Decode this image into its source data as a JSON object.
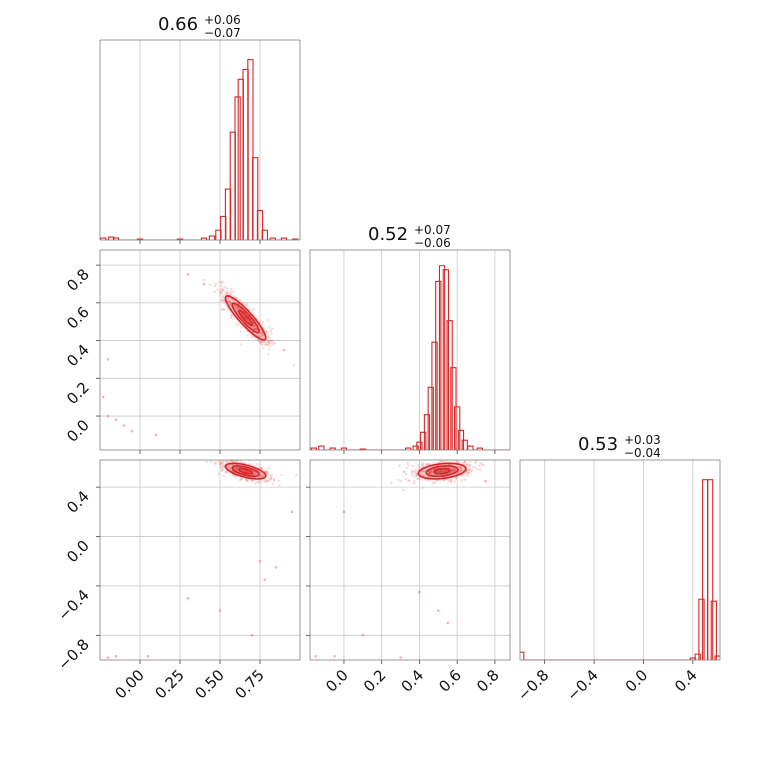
{
  "chart_data": {
    "type": "corner",
    "color": "#d62728",
    "params": [
      {
        "title": {
          "value": "0.66",
          "plus": "+0.06",
          "minus": "−0.07"
        },
        "range": [
          -0.25,
          1.0
        ],
        "ticks": [
          0.0,
          0.25,
          0.5,
          0.75
        ],
        "tick_labels": [
          "0.00",
          "0.25",
          "0.50",
          "0.75"
        ],
        "hist": {
          "bins": [
            [
              0.4,
              0.01
            ],
            [
              0.45,
              0.02
            ],
            [
              0.49,
              0.05
            ],
            [
              0.52,
              0.12
            ],
            [
              0.55,
              0.26
            ],
            [
              0.58,
              0.55
            ],
            [
              0.61,
              0.73
            ],
            [
              0.63,
              0.82
            ],
            [
              0.66,
              0.87
            ],
            [
              0.69,
              0.92
            ],
            [
              0.72,
              0.42
            ],
            [
              0.75,
              0.15
            ],
            [
              0.78,
              0.05
            ],
            [
              0.83,
              0.01
            ],
            [
              0.9,
              0.01
            ],
            [
              0.97,
              0.005
            ]
          ],
          "tail": [
            [
              -0.23,
              0.01
            ],
            [
              -0.18,
              0.015
            ],
            [
              -0.15,
              0.01
            ],
            [
              0.0,
              0.005
            ],
            [
              0.25,
              0.005
            ]
          ]
        }
      },
      {
        "title": {
          "value": "0.52",
          "plus": "+0.07",
          "minus": "−0.06"
        },
        "range": [
          -0.18,
          0.88
        ],
        "ticks": [
          0.0,
          0.2,
          0.4,
          0.6,
          0.8
        ],
        "tick_labels": [
          "0.0",
          "0.2",
          "0.4",
          "0.6",
          "0.8"
        ],
        "hist": {
          "bins": [
            [
              0.34,
              0.01
            ],
            [
              0.38,
              0.02
            ],
            [
              0.4,
              0.04
            ],
            [
              0.42,
              0.09
            ],
            [
              0.44,
              0.18
            ],
            [
              0.46,
              0.32
            ],
            [
              0.48,
              0.55
            ],
            [
              0.5,
              0.86
            ],
            [
              0.52,
              0.94
            ],
            [
              0.54,
              0.92
            ],
            [
              0.56,
              0.66
            ],
            [
              0.58,
              0.42
            ],
            [
              0.6,
              0.22
            ],
            [
              0.62,
              0.1
            ],
            [
              0.64,
              0.05
            ],
            [
              0.67,
              0.02
            ],
            [
              0.72,
              0.01
            ]
          ],
          "tail": [
            [
              -0.16,
              0.01
            ],
            [
              -0.12,
              0.02
            ],
            [
              -0.06,
              0.01
            ],
            [
              0.0,
              0.01
            ],
            [
              0.1,
              0.005
            ]
          ]
        }
      },
      {
        "title": {
          "value": "0.53",
          "plus": "+0.03",
          "minus": "−0.04"
        },
        "range": [
          -1.0,
          0.62
        ],
        "ticks": [
          -0.8,
          -0.4,
          0.0,
          0.4
        ],
        "tick_labels": [
          "−0.8",
          "−0.4",
          "0.0",
          "0.4"
        ],
        "hist": {
          "bins": [
            [
              0.4,
              0.01
            ],
            [
              0.44,
              0.03
            ],
            [
              0.47,
              0.31
            ],
            [
              0.5,
              0.92
            ],
            [
              0.54,
              0.92
            ],
            [
              0.57,
              0.3
            ],
            [
              0.6,
              0.02
            ]
          ],
          "tail": [
            [
              -0.99,
              0.04
            ]
          ]
        }
      }
    ],
    "correlations": [
      {
        "x": 0,
        "y": 1,
        "mean": [
          0.66,
          0.52
        ],
        "sd": [
          0.07,
          0.065
        ],
        "rho": -0.9,
        "outliers": [
          [
            -0.2,
            0.0
          ],
          [
            -0.15,
            -0.02
          ],
          [
            -0.1,
            -0.05
          ],
          [
            -0.05,
            -0.08
          ],
          [
            0.1,
            -0.1
          ],
          [
            -0.23,
            0.1
          ],
          [
            -0.2,
            0.3
          ],
          [
            0.3,
            0.75
          ],
          [
            0.4,
            0.7
          ],
          [
            0.9,
            0.35
          ]
        ]
      },
      {
        "x": 0,
        "y": 2,
        "mean": [
          0.66,
          0.53
        ],
        "sd": [
          0.07,
          0.035
        ],
        "rho": -0.6,
        "outliers": [
          [
            0.75,
            -0.2
          ],
          [
            0.78,
            -0.35
          ],
          [
            0.5,
            -0.6
          ],
          [
            0.85,
            -0.25
          ],
          [
            0.3,
            -0.5
          ],
          [
            -0.2,
            -0.98
          ],
          [
            -0.15,
            -0.97
          ],
          [
            0.05,
            -0.97
          ],
          [
            0.7,
            -0.8
          ],
          [
            0.95,
            0.2
          ]
        ]
      },
      {
        "x": 1,
        "y": 2,
        "mean": [
          0.52,
          0.53
        ],
        "sd": [
          0.07,
          0.035
        ],
        "rho": 0.3,
        "outliers": [
          [
            0.0,
            0.2
          ],
          [
            0.5,
            -0.6
          ],
          [
            0.55,
            -0.7
          ],
          [
            0.4,
            -0.45
          ],
          [
            -0.15,
            -0.97
          ],
          [
            -0.05,
            -0.97
          ],
          [
            0.3,
            -0.98
          ],
          [
            0.1,
            -0.8
          ],
          [
            0.75,
            0.45
          ]
        ]
      }
    ]
  }
}
